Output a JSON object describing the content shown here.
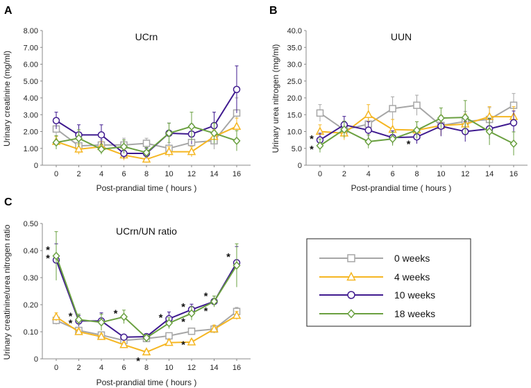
{
  "colors": {
    "0w": "#a6a6a6",
    "4w": "#f5b622",
    "10w": "#3f1a8f",
    "18w": "#6aa040",
    "axis": "#888888"
  },
  "legend": {
    "entries": [
      "0 weeks",
      "4 weeks",
      "10 weeks",
      "18 weeks"
    ]
  },
  "chart_data": [
    {
      "panel": "A",
      "type": "line",
      "title": "UCrn",
      "xlabel": "Post-prandial time ( hours )",
      "ylabel": "Urinary creatinine (mg/ml)",
      "x": [
        0,
        2,
        4,
        6,
        8,
        10,
        12,
        14,
        16
      ],
      "xticks": [
        "0",
        "2",
        "4",
        "6",
        "8",
        "10",
        "12",
        "14",
        "16"
      ],
      "ylim": [
        0,
        8
      ],
      "yticks": [
        "0",
        "1.00",
        "2.00",
        "3.00",
        "4.00",
        "5.00",
        "6.00",
        "7.00",
        "8.00"
      ],
      "series": [
        {
          "name": "0 weeks",
          "values": [
            2.15,
            1.15,
            1.2,
            1.2,
            1.3,
            1.0,
            1.35,
            1.45,
            3.1
          ],
          "err": [
            0.6,
            0.3,
            0.3,
            0.4,
            0.3,
            0.35,
            0.4,
            0.5,
            0.9
          ]
        },
        {
          "name": "4 weeks",
          "values": [
            1.4,
            0.95,
            1.1,
            0.6,
            0.35,
            0.8,
            0.8,
            1.7,
            2.3
          ],
          "err": [
            0.3,
            0.3,
            0.3,
            0.3,
            0.2,
            0.3,
            0.3,
            0.4,
            0.5
          ]
        },
        {
          "name": "10 weeks",
          "values": [
            2.65,
            1.8,
            1.8,
            0.7,
            0.7,
            1.9,
            1.85,
            2.35,
            4.5
          ],
          "err": [
            0.5,
            0.6,
            0.6,
            0.3,
            0.3,
            0.6,
            0.6,
            0.8,
            1.4
          ]
        },
        {
          "name": "18 weeks",
          "values": [
            1.35,
            1.6,
            0.95,
            1.1,
            0.75,
            1.9,
            2.3,
            1.9,
            1.45
          ],
          "err": [
            0.4,
            0.5,
            0.3,
            0.4,
            0.3,
            0.6,
            0.85,
            0.6,
            0.6
          ]
        }
      ],
      "stars": []
    },
    {
      "panel": "B",
      "type": "line",
      "title": "UUN",
      "xlabel": "Post-prandial time ( hours )",
      "ylabel": "Urinary urea nitrogen (mg/ml)",
      "x": [
        0,
        2,
        4,
        6,
        8,
        10,
        12,
        14,
        16
      ],
      "xticks": [
        "0",
        "2",
        "4",
        "6",
        "8",
        "10",
        "12",
        "14",
        "16"
      ],
      "ylim": [
        0,
        40
      ],
      "yticks": [
        "0",
        "5.0",
        "10.0",
        "15.0",
        "20.0",
        "25.0",
        "30.0",
        "35.0",
        "40.0"
      ],
      "series": [
        {
          "name": "0 weeks",
          "values": [
            15.5,
            10.5,
            12.2,
            16.8,
            17.8,
            11.8,
            13.0,
            13.6,
            17.8
          ],
          "err": [
            2.5,
            2.0,
            2.5,
            3.5,
            3.0,
            3.0,
            3.0,
            3.5,
            3.5
          ]
        },
        {
          "name": "4 weeks",
          "values": [
            10.0,
            9.5,
            15.0,
            10.6,
            10.4,
            11.8,
            12.2,
            14.4,
            14.4
          ],
          "err": [
            2.0,
            2.0,
            3.0,
            3.0,
            2.5,
            3.0,
            3.0,
            3.0,
            3.0
          ]
        },
        {
          "name": "10 weeks",
          "values": [
            7.5,
            12.0,
            10.4,
            8.2,
            8.4,
            11.6,
            10.0,
            10.8,
            12.6
          ],
          "err": [
            2.0,
            2.5,
            2.5,
            2.0,
            2.0,
            3.0,
            3.0,
            3.0,
            3.5
          ]
        },
        {
          "name": "18 weeks",
          "values": [
            5.8,
            10.6,
            7.0,
            7.8,
            10.4,
            14.0,
            14.2,
            10.0,
            6.4
          ],
          "err": [
            2.0,
            2.5,
            2.0,
            2.0,
            2.5,
            3.0,
            5.0,
            4.0,
            3.5
          ]
        }
      ],
      "stars": [
        {
          "x": 0,
          "y": 8.0,
          "label": "*"
        },
        {
          "x": 0,
          "y": 5.0,
          "label": "*"
        },
        {
          "x": 8,
          "y": 6.5,
          "label": "*"
        }
      ]
    },
    {
      "panel": "C",
      "type": "line",
      "title": "UCrn/UN ratio",
      "xlabel": "Post-prandial time ( hours )",
      "ylabel": "Urinary creatinine/urea nitrogen ratio",
      "x": [
        0,
        2,
        4,
        6,
        8,
        10,
        12,
        14,
        16
      ],
      "xticks": [
        "0",
        "2",
        "4",
        "6",
        "8",
        "10",
        "12",
        "14",
        "16"
      ],
      "ylim": [
        0,
        0.5
      ],
      "yticks": [
        "0",
        "0.10",
        "0.20",
        "0.30",
        "0.40",
        "0.50"
      ],
      "series": [
        {
          "name": "0 weeks",
          "values": [
            0.142,
            0.105,
            0.088,
            0.068,
            0.075,
            0.085,
            0.102,
            0.11,
            0.175
          ],
          "err": [
            0.015,
            0.01,
            0.01,
            0.01,
            0.01,
            0.01,
            0.012,
            0.012,
            0.015
          ]
        },
        {
          "name": "4 weeks",
          "values": [
            0.155,
            0.1,
            0.082,
            0.052,
            0.025,
            0.06,
            0.062,
            0.11,
            0.16
          ],
          "err": [
            0.015,
            0.01,
            0.01,
            0.01,
            0.008,
            0.01,
            0.01,
            0.015,
            0.015
          ]
        },
        {
          "name": "10 weeks",
          "values": [
            0.365,
            0.14,
            0.14,
            0.08,
            0.082,
            0.148,
            0.182,
            0.212,
            0.355
          ],
          "err": [
            0.06,
            0.02,
            0.03,
            0.01,
            0.01,
            0.025,
            0.02,
            0.02,
            0.06
          ]
        },
        {
          "name": "18 weeks",
          "values": [
            0.38,
            0.145,
            0.135,
            0.155,
            0.078,
            0.132,
            0.168,
            0.212,
            0.345
          ],
          "err": [
            0.09,
            0.02,
            0.03,
            0.025,
            0.01,
            0.02,
            0.025,
            0.02,
            0.08
          ]
        }
      ],
      "stars": [
        {
          "x": 0,
          "y": 0.405,
          "label": "*"
        },
        {
          "x": 0,
          "y": 0.375,
          "label": "*"
        },
        {
          "x": 2,
          "y": 0.16,
          "label": "*"
        },
        {
          "x": 2,
          "y": 0.135,
          "label": "*"
        },
        {
          "x": 6,
          "y": 0.17,
          "label": "*"
        },
        {
          "x": 8,
          "y": -0.005,
          "label": "*"
        },
        {
          "x": 10,
          "y": 0.155,
          "label": "*"
        },
        {
          "x": 12,
          "y": 0.195,
          "label": "*"
        },
        {
          "x": 12,
          "y": 0.14,
          "label": "*"
        },
        {
          "x": 12,
          "y": 0.055,
          "label": "*"
        },
        {
          "x": 14,
          "y": 0.235,
          "label": "*"
        },
        {
          "x": 14,
          "y": 0.18,
          "label": "*"
        },
        {
          "x": 16,
          "y": 0.38,
          "label": "*"
        }
      ]
    }
  ]
}
